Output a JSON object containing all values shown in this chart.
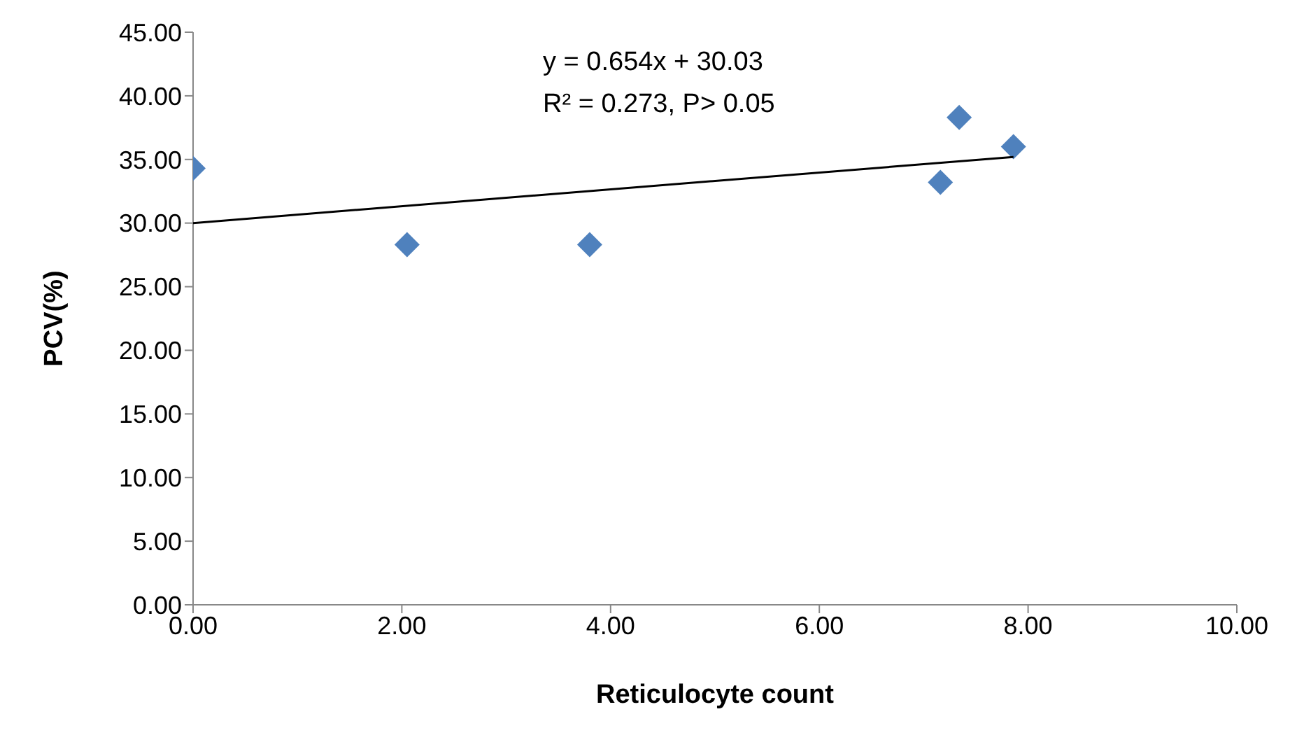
{
  "chart_data": {
    "type": "scatter",
    "xlabel": "Reticulocyte count",
    "ylabel": "PCV(%)",
    "annotations": [
      "y = 0.654x + 30.03",
      "R² = 0.273, P> 0.05"
    ],
    "xlim": [
      0,
      10
    ],
    "xticks": [
      {
        "value": 0,
        "label": "0.00"
      },
      {
        "value": 2,
        "label": "2.00"
      },
      {
        "value": 4,
        "label": "4.00"
      },
      {
        "value": 6,
        "label": "6.00"
      },
      {
        "value": 8,
        "label": "8.00"
      },
      {
        "value": 10,
        "label": "10.00"
      }
    ],
    "ylim": [
      0,
      45
    ],
    "yticks": [
      {
        "value": 0,
        "label": "0.00"
      },
      {
        "value": 5,
        "label": "5.00"
      },
      {
        "value": 10,
        "label": "10.00"
      },
      {
        "value": 15,
        "label": "15.00"
      },
      {
        "value": 20,
        "label": "20.00"
      },
      {
        "value": 25,
        "label": "25.00"
      },
      {
        "value": 30,
        "label": "30.00"
      },
      {
        "value": 35,
        "label": "35.00"
      },
      {
        "value": 40,
        "label": "40.00"
      },
      {
        "value": 45,
        "label": "45.00"
      }
    ],
    "grid": false,
    "legend": false,
    "series": [
      {
        "marker": "diamond",
        "color": "#4f81bd",
        "x": [
          0,
          2.05,
          3.8,
          7.16,
          7.34,
          7.86
        ],
        "values": [
          34.3,
          28.3,
          28.3,
          33.2,
          38.3,
          36.0
        ]
      },
      {
        "type": "line",
        "marker": "none",
        "color": "#000000",
        "x": [
          0,
          7.86
        ],
        "values": [
          30.0,
          35.2
        ]
      }
    ]
  }
}
